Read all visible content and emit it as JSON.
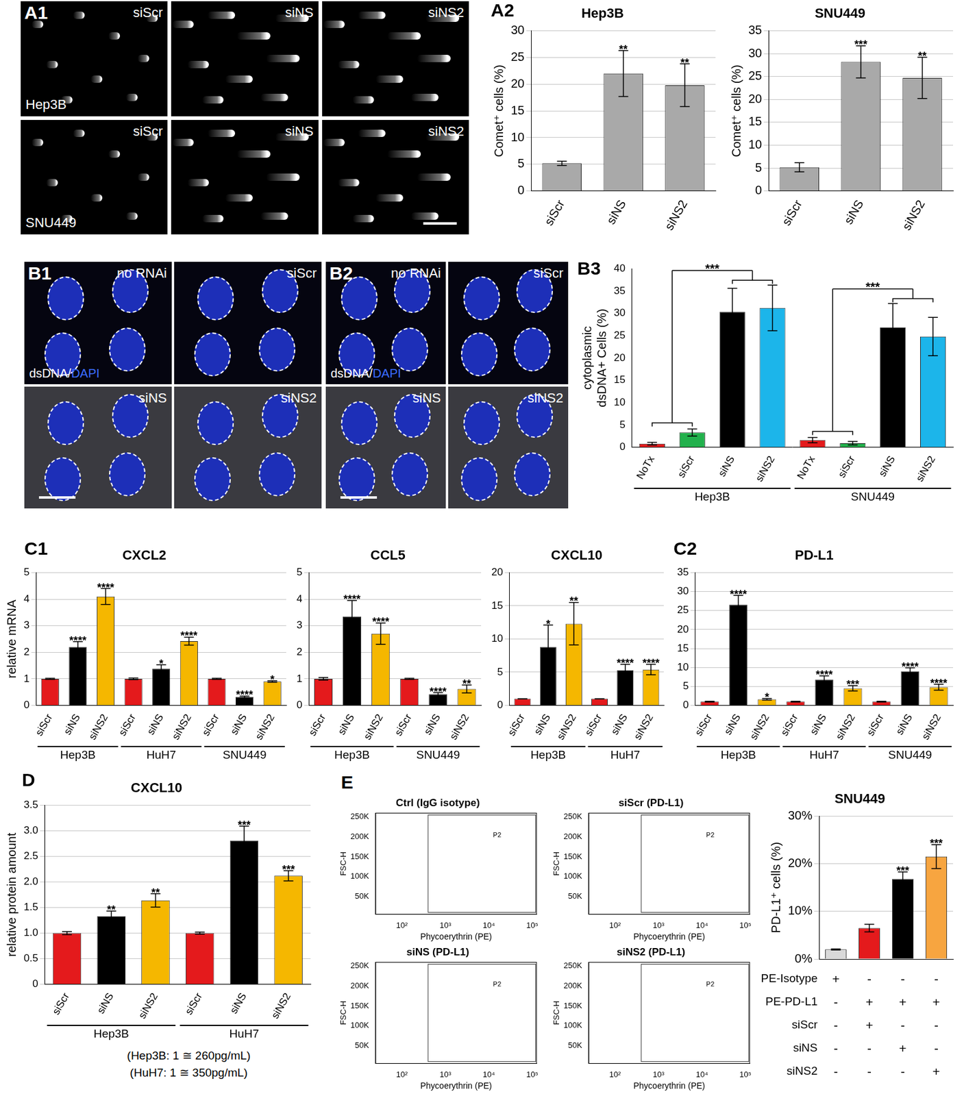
{
  "image_panels": [
    {
      "panel": "A1",
      "rows": [
        {
          "label": "Hep3B",
          "tiles": [
            "siScr",
            "siNS",
            "siNS2"
          ]
        },
        {
          "label": "SNU449",
          "tiles": [
            "siScr",
            "siNS",
            "siNS2"
          ]
        }
      ]
    },
    {
      "panel": "B1",
      "stain": [
        "dsDNA/",
        "DAPI"
      ],
      "tiles": [
        "no RNAi",
        "siScr",
        "siNS",
        "siNS2"
      ]
    },
    {
      "panel": "B2",
      "stain": [
        "dsDNA/",
        "DAPI"
      ],
      "tiles": [
        "no RNAi",
        "siScr",
        "siNS",
        "siNS2"
      ]
    }
  ],
  "chart_data": [
    {
      "panel": "A2",
      "type": "bar",
      "title": "Hep3B",
      "y_label": "Comet⁺ cells (%)",
      "categories": [
        "siScr",
        "siNS",
        "siNS2"
      ],
      "values": [
        5.2,
        22,
        19.8
      ],
      "errors": [
        0.4,
        4.3,
        4.0
      ],
      "stars": [
        null,
        "**",
        "**"
      ],
      "color": "#a9a9a9",
      "ylim": [
        0,
        30
      ],
      "yticks": [
        0,
        5,
        10,
        15,
        20,
        25,
        30
      ],
      "grid": true
    },
    {
      "type": "bar",
      "title": "SNU449",
      "y_label": "Comet⁺ cells (%)",
      "categories": [
        "siScr",
        "siNS",
        "siNS2"
      ],
      "values": [
        5.2,
        28.2,
        24.7
      ],
      "errors": [
        1.0,
        3.5,
        4.5
      ],
      "stars": [
        null,
        "***",
        "**"
      ],
      "color": "#a9a9a9",
      "ylim": [
        0,
        35
      ],
      "yticks": [
        0,
        5,
        10,
        15,
        20,
        25,
        30,
        35
      ],
      "grid": true
    },
    {
      "panel": "B3",
      "type": "bar",
      "y_label": [
        "cytoplasmic",
        "dsDNA+ Cells (%)"
      ],
      "categories": [
        "NoTx",
        "siScr",
        "siNS",
        "siNS2",
        "NoTx",
        "siScr",
        "siNS",
        "siNS2"
      ],
      "groups": [
        {
          "label": "Hep3B",
          "count": 4,
          "significance": "***"
        },
        {
          "label": "SNU449",
          "count": 4,
          "significance": "***"
        }
      ],
      "values": [
        0.8,
        3.3,
        30.3,
        31.2,
        1.6,
        0.9,
        26.8,
        24.8
      ],
      "errors": [
        0.3,
        0.8,
        5.3,
        5.1,
        0.6,
        0.4,
        5.4,
        4.3
      ],
      "colors": [
        "#e41a1c",
        "#22b14c",
        "#000000",
        "#1cb5ea",
        "#e41a1c",
        "#22b14c",
        "#000000",
        "#1cb5ea"
      ],
      "ylim": [
        0,
        40
      ],
      "yticks": [
        0,
        5,
        10,
        15,
        20,
        25,
        30,
        35,
        40
      ],
      "grid": false
    },
    {
      "panel": "C1",
      "type": "bar",
      "title": "CXCL2",
      "y_label": "relative mRNA",
      "categories": [
        "siScr",
        "siNS",
        "siNS2",
        "siScr",
        "siNS",
        "siNS2",
        "siScr",
        "siNS",
        "siNS2"
      ],
      "groups": [
        {
          "label": "Hep3B",
          "count": 3
        },
        {
          "label": "HuH7",
          "count": 3
        },
        {
          "label": "SNU449",
          "count": 3
        }
      ],
      "values": [
        1,
        2.2,
        4.1,
        1,
        1.38,
        2.42,
        1,
        0.32,
        0.9
      ],
      "errors": [
        0.02,
        0.2,
        0.3,
        0.03,
        0.15,
        0.15,
        0.02,
        0.03,
        0.03
      ],
      "stars": [
        null,
        "****",
        "****",
        null,
        "*",
        "****",
        null,
        "****",
        "*"
      ],
      "colors": [
        "#e41a1c",
        "#000000",
        "#f5b700",
        "#e41a1c",
        "#000000",
        "#f5b700",
        "#e41a1c",
        "#000000",
        "#f5b700"
      ],
      "ylim": [
        0,
        5
      ],
      "yticks": [
        0,
        1,
        2,
        3,
        4,
        5
      ],
      "grid": true
    },
    {
      "type": "bar",
      "title": "CCL5",
      "categories": [
        "siScr",
        "siNS",
        "siNS2",
        "siScr",
        "siNS",
        "siNS2"
      ],
      "groups": [
        {
          "label": "Hep3B",
          "count": 3
        },
        {
          "label": "SNU449",
          "count": 3
        }
      ],
      "values": [
        1,
        3.35,
        2.7,
        1,
        0.42,
        0.62
      ],
      "errors": [
        0.05,
        0.6,
        0.4,
        0.02,
        0.06,
        0.15
      ],
      "stars": [
        null,
        "****",
        "****",
        null,
        "****",
        "**"
      ],
      "colors": [
        "#e41a1c",
        "#000000",
        "#f5b700",
        "#e41a1c",
        "#000000",
        "#f5b700"
      ],
      "ylim": [
        0,
        5
      ],
      "yticks": [
        0,
        1,
        2,
        3,
        4,
        5
      ],
      "grid": true
    },
    {
      "type": "bar",
      "title": "CXCL10",
      "categories": [
        "siScr",
        "siNS",
        "siNS2",
        "siScr",
        "siNS",
        "siNS2"
      ],
      "groups": [
        {
          "label": "Hep3B",
          "count": 3
        },
        {
          "label": "HuH7",
          "count": 3
        }
      ],
      "values": [
        1,
        8.8,
        12.3,
        1,
        5.3,
        5.4
      ],
      "errors": [
        0.02,
        3.3,
        3.2,
        0.02,
        0.9,
        0.8
      ],
      "stars": [
        null,
        "*",
        "**",
        null,
        "****",
        "****"
      ],
      "colors": [
        "#e41a1c",
        "#000000",
        "#f5b700",
        "#e41a1c",
        "#000000",
        "#f5b700"
      ],
      "ylim": [
        0,
        20
      ],
      "yticks": [
        0,
        5,
        10,
        15,
        20
      ],
      "grid": true
    },
    {
      "panel": "C2",
      "type": "bar",
      "title": "PD-L1",
      "categories": [
        "siScr",
        "siNS",
        "siNS2",
        "siScr",
        "siNS",
        "siNS2",
        "siScr",
        "siNS",
        "siNS2"
      ],
      "groups": [
        {
          "label": "Hep3B",
          "count": 3
        },
        {
          "label": "HuH7",
          "count": 3
        },
        {
          "label": "SNU449",
          "count": 3
        }
      ],
      "values": [
        1,
        26.5,
        1.6,
        1,
        6.8,
        4.5,
        1,
        9,
        4.8
      ],
      "errors": [
        0.1,
        2.5,
        0.2,
        0.1,
        1.0,
        0.7,
        0.1,
        0.9,
        0.8
      ],
      "stars": [
        null,
        "****",
        "*",
        null,
        "****",
        "***",
        null,
        "****",
        "****"
      ],
      "colors": [
        "#e41a1c",
        "#000000",
        "#f5b700",
        "#e41a1c",
        "#000000",
        "#f5b700",
        "#e41a1c",
        "#000000",
        "#f5b700"
      ],
      "ylim": [
        0,
        35
      ],
      "yticks": [
        0,
        5,
        10,
        15,
        20,
        25,
        30,
        35
      ],
      "grid": true
    },
    {
      "panel": "D",
      "type": "bar",
      "title": "CXCL10",
      "y_label": "relative protein amount",
      "categories": [
        "siScr",
        "siNS",
        "siNS2",
        "siScr",
        "siNS",
        "siNS2"
      ],
      "groups": [
        {
          "label": "Hep3B",
          "count": 3
        },
        {
          "label": "HuH7",
          "count": 3
        }
      ],
      "values": [
        1,
        1.33,
        1.64,
        1,
        2.81,
        2.12
      ],
      "errors": [
        0.03,
        0.1,
        0.13,
        0.02,
        0.28,
        0.1
      ],
      "stars": [
        null,
        "**",
        "**",
        null,
        "***",
        "***"
      ],
      "colors": [
        "#e41a1c",
        "#000000",
        "#f5b700",
        "#e41a1c",
        "#000000",
        "#f5b700"
      ],
      "ylim": [
        0,
        3.5
      ],
      "yticks": [
        0,
        0.5,
        {
          "value": 1,
          "label": "1.0"
        },
        1.5,
        {
          "value": 2,
          "label": "2.0"
        },
        2.5,
        {
          "value": 3,
          "label": "3.0"
        },
        3.5
      ],
      "grid": true,
      "notes": [
        "(Hep3B: 1 ≅ 260pg/mL)",
        "(HuH7: 1 ≅ 350pg/mL)"
      ]
    },
    {
      "panel": "E",
      "type": "scatter",
      "title": "Ctrl (IgG isotype)",
      "x_label": "Phycoerythrin (PE)",
      "y_label": "FSC-H",
      "log": "x",
      "xlim": [
        25,
        125000
      ],
      "xticks": [
        {
          "value": 100,
          "label": "10²"
        },
        {
          "value": 1000,
          "label": "10³"
        },
        {
          "value": 10000,
          "label": "10⁴"
        },
        {
          "value": 100000,
          "label": "10⁵"
        }
      ],
      "ylim": [
        5000,
        260000
      ],
      "yticks": [
        {
          "value": 50000,
          "label": "50K"
        },
        {
          "value": 100000,
          "label": "100K"
        },
        {
          "value": 150000,
          "label": "150K"
        },
        {
          "value": 200000,
          "label": "200K"
        },
        {
          "value": 250000,
          "label": "250K"
        }
      ],
      "grid": false,
      "gate": {
        "label": "P2",
        "x": [
          400,
          120000
        ],
        "y": [
          10000,
          255000
        ]
      }
    },
    {
      "type": "scatter",
      "title": "siScr (PD-L1)",
      "x_label": "Phycoerythrin (PE)",
      "y_label": "FSC-H",
      "log": "x",
      "xlim": [
        25,
        125000
      ],
      "xticks": [
        {
          "value": 100,
          "label": "10²"
        },
        {
          "value": 1000,
          "label": "10³"
        },
        {
          "value": 10000,
          "label": "10⁴"
        },
        {
          "value": 100000,
          "label": "10⁵"
        }
      ],
      "ylim": [
        5000,
        260000
      ],
      "yticks": [
        {
          "value": 50000,
          "label": "50K"
        },
        {
          "value": 100000,
          "label": "100K"
        },
        {
          "value": 150000,
          "label": "150K"
        },
        {
          "value": 200000,
          "label": "200K"
        },
        {
          "value": 250000,
          "label": "250K"
        }
      ],
      "grid": false,
      "gate": {
        "label": "P2",
        "x": [
          400,
          120000
        ],
        "y": [
          10000,
          255000
        ]
      }
    },
    {
      "type": "scatter",
      "title": "siNS (PD-L1)",
      "x_label": "Phycoerythrin (PE)",
      "y_label": "FSC-H",
      "log": "x",
      "xlim": [
        25,
        125000
      ],
      "xticks": [
        {
          "value": 100,
          "label": "10²"
        },
        {
          "value": 1000,
          "label": "10³"
        },
        {
          "value": 10000,
          "label": "10⁴"
        },
        {
          "value": 100000,
          "label": "10⁵"
        }
      ],
      "ylim": [
        5000,
        260000
      ],
      "yticks": [
        {
          "value": 50000,
          "label": "50K"
        },
        {
          "value": 100000,
          "label": "100K"
        },
        {
          "value": 150000,
          "label": "150K"
        },
        {
          "value": 200000,
          "label": "200K"
        },
        {
          "value": 250000,
          "label": "250K"
        }
      ],
      "grid": false,
      "gate": {
        "label": "P2",
        "x": [
          400,
          120000
        ],
        "y": [
          10000,
          255000
        ]
      }
    },
    {
      "type": "scatter",
      "title": "siNS2 (PD-L1)",
      "x_label": "Phycoerythrin (PE)",
      "y_label": "FSC-H",
      "log": "x",
      "xlim": [
        25,
        125000
      ],
      "xticks": [
        {
          "value": 100,
          "label": "10²"
        },
        {
          "value": 1000,
          "label": "10³"
        },
        {
          "value": 10000,
          "label": "10⁴"
        },
        {
          "value": 100000,
          "label": "10⁵"
        }
      ],
      "ylim": [
        5000,
        260000
      ],
      "yticks": [
        {
          "value": 50000,
          "label": "50K"
        },
        {
          "value": 100000,
          "label": "100K"
        },
        {
          "value": 150000,
          "label": "150K"
        },
        {
          "value": 200000,
          "label": "200K"
        },
        {
          "value": 250000,
          "label": "250K"
        }
      ],
      "grid": false,
      "gate": {
        "label": "P2",
        "x": [
          400,
          120000
        ],
        "y": [
          10000,
          255000
        ]
      }
    },
    {
      "type": "bar",
      "title": "SNU449",
      "y_label": "PD-L1⁺ cells (%)",
      "categories": [
        null,
        null,
        null,
        null
      ],
      "values": [
        2.0,
        6.5,
        16.8,
        21.5
      ],
      "errors": [
        0.1,
        0.8,
        1.5,
        2.5
      ],
      "stars": [
        null,
        null,
        "***",
        "***"
      ],
      "colors": [
        "#d9d9d9",
        "#e41a1c",
        "#000000",
        "#f7a540"
      ],
      "ylim": [
        0,
        30
      ],
      "yticks": [
        {
          "value": 0,
          "label": "0%"
        },
        {
          "value": 10,
          "label": "10%"
        },
        {
          "value": 20,
          "label": "20%"
        },
        {
          "value": 30,
          "label": "30%"
        }
      ],
      "grid": true,
      "tick_labels": "y",
      "table": {
        "rows": [
          [
            "PE-Isotype",
            "+",
            "-",
            "-",
            "-"
          ],
          [
            "PE-PD-L1",
            "-",
            "+",
            "+",
            "+"
          ],
          [
            "siScr",
            "-",
            "+",
            "-",
            "-"
          ],
          [
            "siNS",
            "-",
            "-",
            "+",
            "-"
          ],
          [
            "siNS2",
            "-",
            "-",
            "-",
            "+"
          ]
        ]
      }
    }
  ]
}
